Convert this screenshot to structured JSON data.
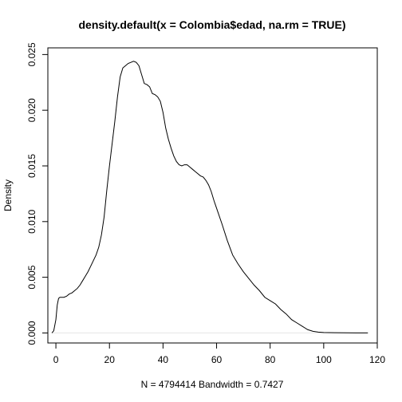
{
  "chart_data": {
    "type": "line",
    "title": "density.default(x = Colombia$edad, na.rm = TRUE)",
    "xlabel": "N = 4794414   Bandwidth = 0.7427",
    "ylabel": "Density",
    "xlim": [
      -3,
      120
    ],
    "ylim": [
      -0.0009,
      0.0256
    ],
    "x_ticks": [
      0,
      20,
      40,
      60,
      80,
      100,
      120
    ],
    "x_tick_labels": [
      "0",
      "20",
      "40",
      "60",
      "80",
      "100",
      "120"
    ],
    "y_ticks": [
      0.0,
      0.005,
      0.01,
      0.015,
      0.02,
      0.025
    ],
    "y_tick_labels": [
      "0.000",
      "0.005",
      "0.010",
      "0.015",
      "0.020",
      "0.025"
    ],
    "grid": false,
    "baseline": 0,
    "series": [
      {
        "x": [
          -1.5,
          -0.8,
          0,
          0.5,
          1,
          1.5,
          2,
          3,
          4,
          5,
          6,
          7,
          8,
          9,
          10,
          11,
          12,
          13,
          14,
          15,
          16,
          17,
          18,
          19,
          20,
          21,
          22,
          23,
          24,
          25,
          26,
          27,
          28,
          29,
          30,
          31,
          32,
          33,
          34,
          35,
          36,
          37,
          38,
          39,
          40,
          41,
          42,
          43,
          44,
          45,
          46,
          47,
          48,
          49,
          50,
          51,
          52,
          53,
          54,
          55,
          56,
          57,
          58,
          59,
          60,
          62,
          64,
          66,
          68,
          70,
          72,
          74,
          76,
          78,
          80,
          82,
          84,
          86,
          88,
          90,
          92,
          94,
          96,
          98,
          100,
          104,
          108,
          112,
          116.5
        ],
        "y": [
          0.0,
          0.0002,
          0.0012,
          0.0025,
          0.0031,
          0.0032,
          0.0032,
          0.0032,
          0.0033,
          0.0035,
          0.0036,
          0.0038,
          0.004,
          0.0043,
          0.0047,
          0.0051,
          0.0055,
          0.006,
          0.0065,
          0.007,
          0.0077,
          0.0088,
          0.0104,
          0.0128,
          0.015,
          0.017,
          0.019,
          0.0212,
          0.023,
          0.0238,
          0.024,
          0.0242,
          0.0243,
          0.0244,
          0.0243,
          0.024,
          0.0232,
          0.0224,
          0.0223,
          0.0221,
          0.0215,
          0.0214,
          0.0212,
          0.0208,
          0.0198,
          0.0184,
          0.0174,
          0.0166,
          0.0159,
          0.0154,
          0.0151,
          0.015,
          0.0151,
          0.0151,
          0.0149,
          0.0147,
          0.0145,
          0.0143,
          0.0141,
          0.014,
          0.0137,
          0.0133,
          0.0127,
          0.0119,
          0.0112,
          0.0098,
          0.0083,
          0.007,
          0.0062,
          0.0055,
          0.0049,
          0.0043,
          0.0038,
          0.0032,
          0.0029,
          0.0026,
          0.0021,
          0.0017,
          0.0012,
          0.0009,
          0.0006,
          0.0003,
          0.00015,
          8e-05,
          4e-05,
          2e-05,
          1e-05,
          5e-06,
          2e-06
        ]
      }
    ],
    "colors": {
      "line": "#000000",
      "axis": "#000000",
      "baseline": "#e6e6e6"
    }
  }
}
